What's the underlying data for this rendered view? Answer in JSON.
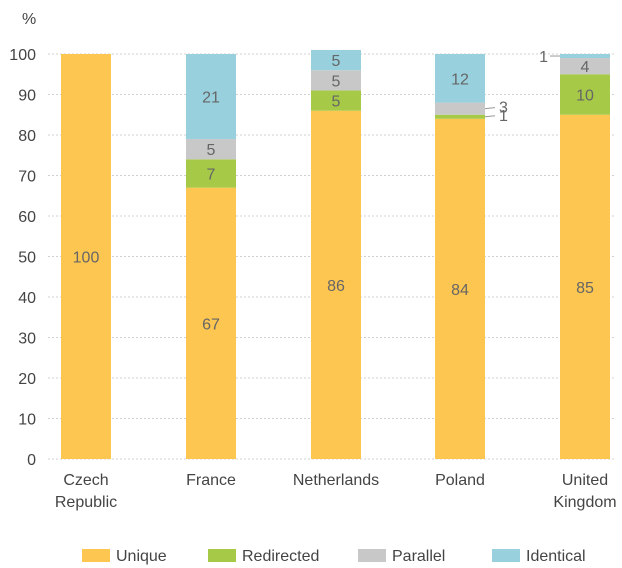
{
  "chart_data": {
    "type": "bar",
    "stacked": true,
    "ylabel": "%",
    "ylim": [
      0,
      100
    ],
    "yticks": [
      0,
      10,
      20,
      30,
      40,
      50,
      60,
      70,
      80,
      90,
      100
    ],
    "grid": true,
    "legend_position": "bottom",
    "categories": [
      [
        "Czech",
        "Republic"
      ],
      [
        "France"
      ],
      [
        "Netherlands"
      ],
      [
        "Poland"
      ],
      [
        "United",
        "Kingdom"
      ]
    ],
    "series": [
      {
        "name": "Unique",
        "color": "#FDC651",
        "values": [
          100,
          67,
          86,
          84,
          85
        ],
        "labels": [
          "100",
          "67",
          "86",
          "84",
          "85"
        ]
      },
      {
        "name": "Redirected",
        "color": "#A6CA47",
        "values": [
          0,
          7,
          5,
          1,
          10
        ],
        "labels": [
          "",
          "7",
          "5",
          "1",
          "10"
        ]
      },
      {
        "name": "Parallel",
        "color": "#C8C8C8",
        "values": [
          0,
          5,
          5,
          3,
          4
        ],
        "labels": [
          "",
          "5",
          "5",
          "3",
          "4"
        ]
      },
      {
        "name": "Identical",
        "color": "#98D0DE",
        "values": [
          0,
          21,
          5,
          12,
          1
        ],
        "labels": [
          "",
          "21",
          "5",
          "12",
          "1"
        ]
      }
    ]
  }
}
